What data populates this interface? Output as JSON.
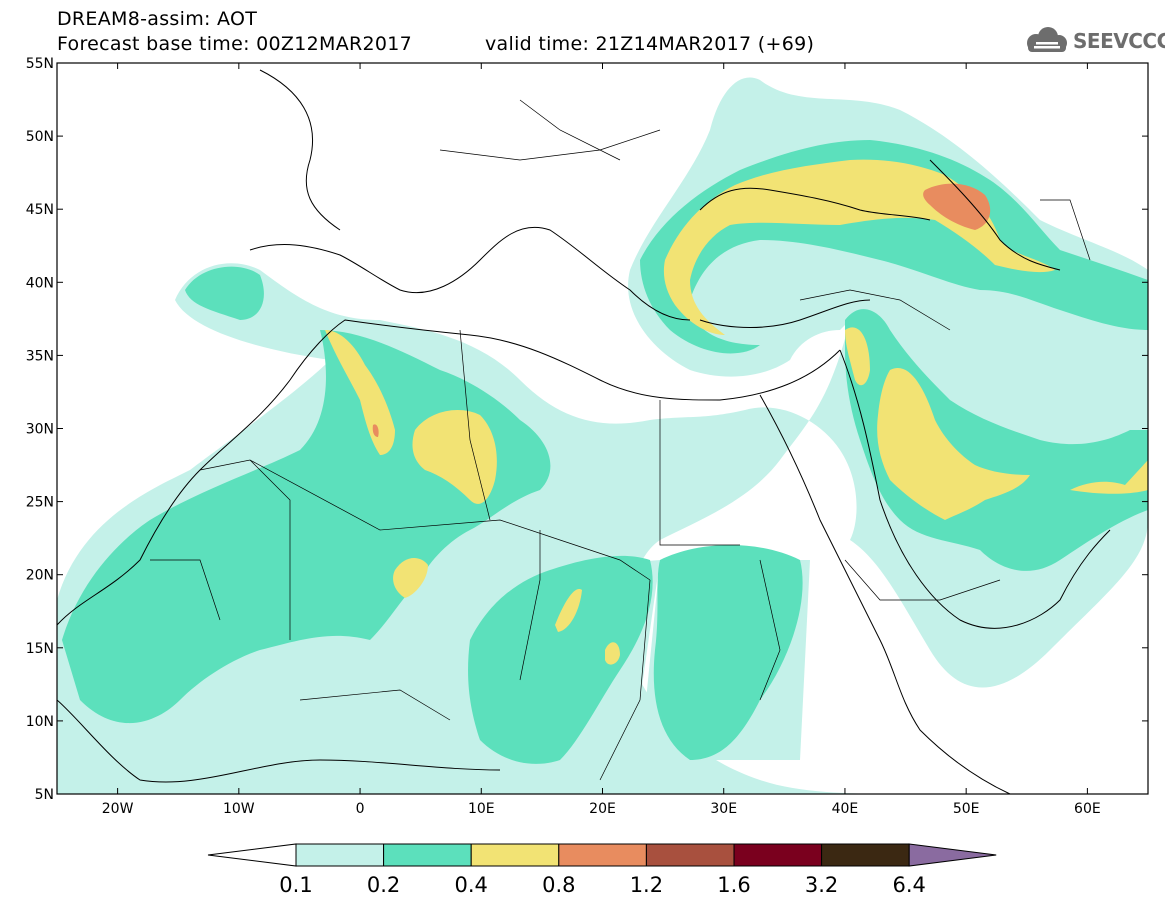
{
  "title": {
    "line1": "DREAM8-assim: AOT",
    "line2": "Forecast base time: 00Z12MAR2017",
    "line3": "valid time: 21Z14MAR2017 (+69)"
  },
  "logo": {
    "text": "SEEVCCC",
    "icon": "cloud-icon",
    "color": "#6d6d6d"
  },
  "axes": {
    "x_ticks": [
      "20W",
      "10W",
      "0",
      "10E",
      "20E",
      "30E",
      "40E",
      "50E",
      "60E"
    ],
    "y_ticks": [
      "55N",
      "50N",
      "45N",
      "40N",
      "35N",
      "30N",
      "25N",
      "20N",
      "15N",
      "10N",
      "5N"
    ],
    "lon_range": [
      -25,
      65
    ],
    "lat_range": [
      5,
      55
    ]
  },
  "legend": {
    "labels": [
      "0.1",
      "0.2",
      "0.4",
      "0.8",
      "1.2",
      "1.6",
      "3.2",
      "6.4"
    ],
    "colors": [
      "#ffffff",
      "#c4f1e9",
      "#5ce0bc",
      "#f2e374",
      "#e88c5f",
      "#a8503e",
      "#7a001e",
      "#3b2812",
      "#8a6ba0"
    ]
  },
  "map_colors": {
    "aot_0_1": "#c4f1e9",
    "aot_0_2": "#5ce0bc",
    "aot_0_4": "#f2e374",
    "aot_0_8": "#e88c5f",
    "aot_1_2": "#d0705a"
  }
}
